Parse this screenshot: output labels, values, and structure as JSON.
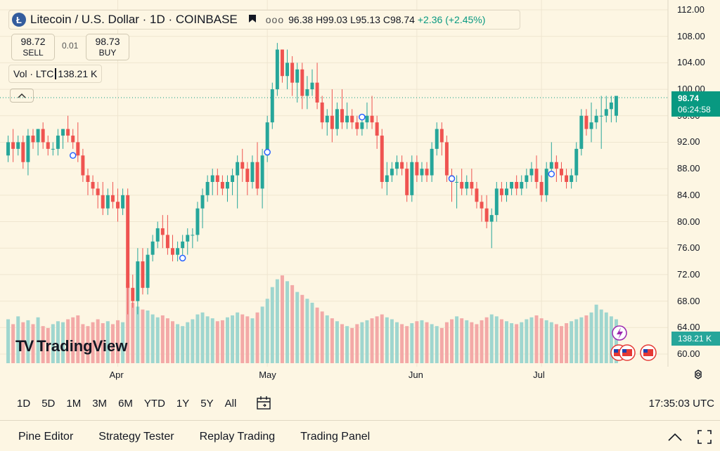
{
  "header": {
    "logo_letter": "Ł",
    "symbol": "Litecoin / U.S. Dollar · 1D · COINBASE",
    "more": "ooo",
    "ohlc": {
      "o": "96.38",
      "h": "H99.03",
      "l": "L95.13",
      "c": "C98.74",
      "chg": "+2.36 (+2.45%)"
    }
  },
  "trade": {
    "sell_price": "98.72",
    "sell_label": "SELL",
    "spread": "0.01",
    "buy_price": "98.73",
    "buy_label": "BUY"
  },
  "volume_legend": {
    "label": "Vol · LTC",
    "value": "138.21 K"
  },
  "price_axis": [
    "112.00",
    "108.00",
    "104.00",
    "100.00",
    "96.00",
    "92.00",
    "88.00",
    "84.00",
    "80.00",
    "76.00",
    "72.00",
    "68.00",
    "64.00",
    "60.00"
  ],
  "price_badge": {
    "price": "98.74",
    "countdown": "06:24:58",
    "volume": "138.21 K"
  },
  "time_axis": [
    "Apr",
    "May",
    "Jun",
    "Jul"
  ],
  "brand": "TradingView",
  "toolbar": {
    "timeframes": [
      "1D",
      "5D",
      "1M",
      "3M",
      "6M",
      "YTD",
      "1Y",
      "5Y",
      "All"
    ],
    "clock": "17:35:03 UTC"
  },
  "panels": [
    "Pine Editor",
    "Strategy Tester",
    "Replay Trading",
    "Trading Panel"
  ],
  "colors": {
    "up": "#26a69a",
    "down": "#ef5350",
    "vol_up": "#9fd6cf",
    "vol_down": "#f3a9a7",
    "badge_green": "#089981"
  },
  "chart_data": {
    "type": "candlestick",
    "symbol": "LTCUSD",
    "interval": "1D",
    "ylim": [
      60,
      112
    ],
    "ohlc": [
      [
        90,
        93,
        89,
        92
      ],
      [
        92,
        94,
        89,
        91
      ],
      [
        91,
        93,
        90,
        92
      ],
      [
        92,
        93,
        88,
        89
      ],
      [
        89,
        94,
        87,
        93
      ],
      [
        93,
        94,
        91,
        92
      ],
      [
        92,
        94,
        90,
        94
      ],
      [
        94,
        95,
        91,
        92
      ],
      [
        92,
        93,
        90,
        91
      ],
      [
        91,
        92,
        90,
        91
      ],
      [
        91,
        94,
        90,
        93
      ],
      [
        93,
        94,
        91,
        94
      ],
      [
        94,
        96,
        92,
        93
      ],
      [
        93,
        94,
        91,
        92
      ],
      [
        92,
        95,
        89,
        90
      ],
      [
        90,
        91,
        86,
        87
      ],
      [
        87,
        88,
        84,
        86
      ],
      [
        86,
        87,
        84,
        85
      ],
      [
        85,
        86,
        82,
        84
      ],
      [
        84,
        86,
        81,
        82
      ],
      [
        82,
        85,
        81,
        84
      ],
      [
        84,
        86,
        82,
        83
      ],
      [
        83,
        85,
        80,
        82
      ],
      [
        82,
        85,
        81,
        84
      ],
      [
        84,
        85,
        66,
        70
      ],
      [
        70,
        72,
        67,
        68
      ],
      [
        68,
        76,
        66,
        74
      ],
      [
        74,
        76,
        69,
        70
      ],
      [
        70,
        76,
        69,
        75
      ],
      [
        75,
        78,
        74,
        77
      ],
      [
        77,
        80,
        76,
        79
      ],
      [
        79,
        81,
        76,
        78
      ],
      [
        78,
        81,
        75,
        76
      ],
      [
        76,
        78,
        74,
        75
      ],
      [
        75,
        77,
        74,
        76
      ],
      [
        76,
        78,
        75,
        77
      ],
      [
        77,
        79,
        75,
        78
      ],
      [
        78,
        79,
        76,
        78
      ],
      [
        78,
        83,
        77,
        82
      ],
      [
        82,
        85,
        79,
        84
      ],
      [
        84,
        87,
        83,
        86
      ],
      [
        86,
        88,
        84,
        87
      ],
      [
        87,
        88,
        84,
        86
      ],
      [
        86,
        87,
        84,
        85
      ],
      [
        85,
        87,
        83,
        86
      ],
      [
        86,
        88,
        84,
        87
      ],
      [
        87,
        90,
        82,
        89
      ],
      [
        89,
        91,
        86,
        88
      ],
      [
        88,
        89,
        84,
        86
      ],
      [
        86,
        90,
        85,
        89
      ],
      [
        89,
        92,
        84,
        85
      ],
      [
        85,
        91,
        82,
        90
      ],
      [
        90,
        96,
        89,
        95
      ],
      [
        95,
        101,
        94,
        100
      ],
      [
        100,
        107,
        99,
        106
      ],
      [
        106,
        106,
        101,
        102
      ],
      [
        102,
        106,
        100,
        104
      ],
      [
        104,
        105,
        99,
        101
      ],
      [
        101,
        104,
        98,
        103
      ],
      [
        103,
        104,
        97,
        99
      ],
      [
        99,
        102,
        97,
        100
      ],
      [
        100,
        103,
        99,
        101
      ],
      [
        101,
        104,
        97,
        98
      ],
      [
        98,
        99,
        94,
        95
      ],
      [
        95,
        97,
        93,
        96
      ],
      [
        96,
        100,
        92,
        94
      ],
      [
        94,
        98,
        93,
        97
      ],
      [
        97,
        100,
        94,
        95
      ],
      [
        95,
        98,
        94,
        96
      ],
      [
        96,
        97,
        94,
        95
      ],
      [
        95,
        96,
        93,
        94
      ],
      [
        94,
        96,
        93,
        95
      ],
      [
        95,
        98,
        94,
        96
      ],
      [
        96,
        99,
        94,
        95
      ],
      [
        95,
        96,
        91,
        93
      ],
      [
        93,
        94,
        85,
        86
      ],
      [
        86,
        89,
        84,
        87
      ],
      [
        87,
        89,
        86,
        88
      ],
      [
        88,
        90,
        87,
        89
      ],
      [
        89,
        90,
        87,
        88
      ],
      [
        88,
        89,
        83,
        84
      ],
      [
        84,
        90,
        83,
        89
      ],
      [
        89,
        90,
        86,
        87
      ],
      [
        87,
        89,
        86,
        88
      ],
      [
        88,
        89,
        86,
        87
      ],
      [
        87,
        92,
        86,
        91
      ],
      [
        91,
        95,
        90,
        94
      ],
      [
        94,
        95,
        90,
        92
      ],
      [
        92,
        93,
        86,
        87
      ],
      [
        87,
        88,
        83,
        86
      ],
      [
        86,
        87,
        82,
        86
      ],
      [
        86,
        88,
        84,
        85
      ],
      [
        85,
        87,
        84,
        86
      ],
      [
        86,
        88,
        84,
        85
      ],
      [
        85,
        86,
        82,
        83
      ],
      [
        83,
        84,
        80,
        82
      ],
      [
        82,
        84,
        79,
        80
      ],
      [
        80,
        82,
        76,
        81
      ],
      [
        81,
        86,
        80,
        85
      ],
      [
        85,
        86,
        83,
        84
      ],
      [
        84,
        86,
        83,
        85
      ],
      [
        85,
        86,
        84,
        86
      ],
      [
        86,
        87,
        84,
        85
      ],
      [
        85,
        87,
        84,
        86
      ],
      [
        86,
        88,
        85,
        87
      ],
      [
        87,
        89,
        86,
        88
      ],
      [
        88,
        90,
        85,
        86
      ],
      [
        86,
        87,
        83,
        84
      ],
      [
        84,
        89,
        83,
        88
      ],
      [
        88,
        92,
        87,
        89
      ],
      [
        89,
        90,
        86,
        88
      ],
      [
        88,
        89,
        86,
        87
      ],
      [
        87,
        88,
        85,
        86
      ],
      [
        86,
        88,
        85,
        87
      ],
      [
        87,
        92,
        86,
        91
      ],
      [
        91,
        97,
        90,
        96
      ],
      [
        96,
        97,
        93,
        94
      ],
      [
        94,
        98,
        92,
        95
      ],
      [
        95,
        97,
        94,
        96
      ],
      [
        96,
        99,
        91,
        96
      ],
      [
        96,
        99,
        95,
        97
      ],
      [
        97,
        99,
        95,
        98
      ],
      [
        96,
        99,
        95,
        99
      ]
    ],
    "volume_scale": "relative",
    "volume": [
      45,
      40,
      48,
      42,
      44,
      40,
      47,
      38,
      36,
      40,
      43,
      42,
      45,
      47,
      49,
      40,
      38,
      42,
      45,
      41,
      43,
      40,
      44,
      42,
      82,
      62,
      58,
      55,
      54,
      50,
      47,
      49,
      46,
      43,
      40,
      38,
      42,
      45,
      50,
      52,
      48,
      46,
      43,
      44,
      47,
      49,
      52,
      50,
      48,
      46,
      52,
      58,
      66,
      78,
      86,
      90,
      84,
      80,
      73,
      70,
      66,
      62,
      57,
      53,
      49,
      46,
      43,
      40,
      38,
      36,
      40,
      42,
      44,
      46,
      48,
      50,
      47,
      45,
      42,
      40,
      38,
      41,
      43,
      44,
      42,
      40,
      38,
      36,
      42,
      45,
      48,
      46,
      44,
      42,
      40,
      44,
      47,
      50,
      48,
      45,
      43,
      41,
      40,
      42,
      45,
      47,
      49,
      46,
      44,
      42,
      40,
      38,
      41,
      43,
      45,
      47,
      49,
      52,
      60,
      55,
      52,
      48,
      45
    ],
    "x_ticks": [
      "Apr",
      "May",
      "Jun",
      "Jul"
    ],
    "last_price": 98.74
  }
}
